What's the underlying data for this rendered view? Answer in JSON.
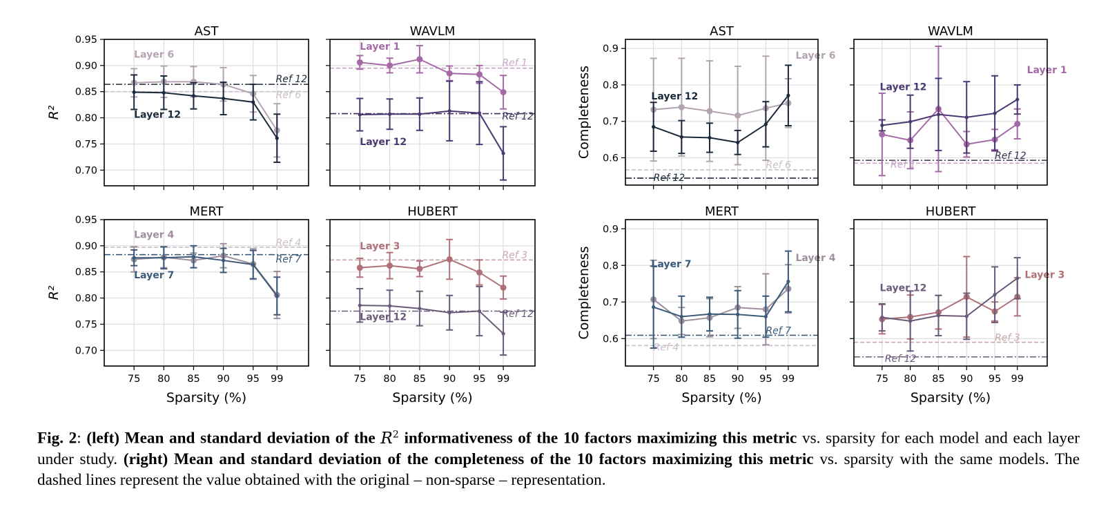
{
  "figure": {
    "x_ticks": [
      75,
      80,
      85,
      90,
      95,
      99
    ],
    "xlabel": "Sparsity (%)"
  },
  "chart_data": [
    {
      "type": "line",
      "panel": "left-top-left",
      "title": "AST",
      "ylabel": "R²",
      "xlabel": "",
      "ylim": [
        0.67,
        0.95
      ],
      "yticks": [
        "0.95",
        "0.90",
        "0.85",
        "0.80",
        "0.75",
        "0.70"
      ],
      "x": [
        75,
        80,
        85,
        90,
        95,
        99
      ],
      "grid": true,
      "series": [
        {
          "name": "Layer 6",
          "label": "Layer 6",
          "color": "#b3a3b3",
          "marker": "circle",
          "values": [
            0.867,
            0.869,
            0.869,
            0.864,
            0.846,
            0.776
          ],
          "err": [
            0.027,
            0.03,
            0.029,
            0.032,
            0.035,
            0.051
          ]
        },
        {
          "name": "Layer 12",
          "label": "Layer 12",
          "color": "#1b2a3a",
          "marker": "dot",
          "values": [
            0.849,
            0.848,
            0.842,
            0.837,
            0.83,
            0.761
          ],
          "err": [
            0.033,
            0.032,
            0.025,
            0.031,
            0.034,
            0.046
          ]
        }
      ],
      "refs": [
        {
          "label": "Ref 12",
          "value": 0.864,
          "color": "#1b2a3a",
          "style": "dashdot"
        },
        {
          "label": "Ref 6",
          "value": 0.85,
          "color": "#c9bec9",
          "style": "dashed"
        }
      ]
    },
    {
      "type": "line",
      "panel": "left-top-right",
      "title": "WAVLM",
      "ylabel": "",
      "ylim": [
        0.67,
        0.95
      ],
      "x": [
        75,
        80,
        85,
        90,
        95,
        99
      ],
      "grid": true,
      "series": [
        {
          "name": "Layer 1",
          "label": "Layer 1",
          "color": "#a56aa6",
          "marker": "circle",
          "values": [
            0.906,
            0.9,
            0.912,
            0.885,
            0.883,
            0.849
          ],
          "err": [
            0.013,
            0.014,
            0.026,
            0.014,
            0.017,
            0.032
          ]
        },
        {
          "name": "Layer 12",
          "label": "Layer 12",
          "color": "#4a3870",
          "marker": "dot",
          "values": [
            0.806,
            0.807,
            0.807,
            0.813,
            0.809,
            0.732
          ],
          "err": [
            0.031,
            0.029,
            0.031,
            0.057,
            0.06,
            0.051
          ]
        }
      ],
      "refs": [
        {
          "label": "Ref 1",
          "value": 0.895,
          "color": "#c9a8c9",
          "style": "dashed"
        },
        {
          "label": "Ref 12",
          "value": 0.808,
          "color": "#3a2f55",
          "style": "dashdot"
        }
      ]
    },
    {
      "type": "line",
      "panel": "left-bottom-left",
      "title": "MERT",
      "ylabel": "R²",
      "ylim": [
        0.67,
        0.95
      ],
      "yticks": [
        "0.95",
        "0.90",
        "0.85",
        "0.80",
        "0.75",
        "0.70"
      ],
      "x": [
        75,
        80,
        85,
        90,
        95,
        99
      ],
      "grid": true,
      "series": [
        {
          "name": "Layer 4",
          "label": "Layer 4",
          "color": "#9e8e9e",
          "marker": "circle",
          "values": [
            0.874,
            0.878,
            0.872,
            0.881,
            0.865,
            0.806
          ],
          "err": [
            0.024,
            0.02,
            0.014,
            0.023,
            0.029,
            0.045
          ]
        },
        {
          "name": "Layer 7",
          "label": "Layer 7",
          "color": "#3b5a7a",
          "marker": "dot",
          "values": [
            0.877,
            0.877,
            0.879,
            0.872,
            0.864,
            0.804
          ],
          "err": [
            0.015,
            0.021,
            0.021,
            0.023,
            0.027,
            0.036
          ]
        }
      ],
      "refs": [
        {
          "label": "Ref 4",
          "value": 0.897,
          "color": "#c9bec9",
          "style": "dashed"
        },
        {
          "label": "Ref 7",
          "value": 0.883,
          "color": "#3b5a7a",
          "style": "dashdot"
        }
      ]
    },
    {
      "type": "line",
      "panel": "left-bottom-right",
      "title": "HUBERT",
      "ylabel": "",
      "ylim": [
        0.67,
        0.95
      ],
      "x": [
        75,
        80,
        85,
        90,
        95,
        99
      ],
      "grid": true,
      "series": [
        {
          "name": "Layer 3",
          "label": "Layer 3",
          "color": "#b07078",
          "marker": "circle",
          "values": [
            0.858,
            0.862,
            0.856,
            0.874,
            0.849,
            0.82
          ],
          "err": [
            0.018,
            0.025,
            0.015,
            0.038,
            0.024,
            0.022
          ]
        },
        {
          "name": "Layer 12",
          "label": "Layer 12",
          "color": "#6a5a7a",
          "marker": "dot",
          "values": [
            0.786,
            0.785,
            0.78,
            0.772,
            0.775,
            0.732
          ],
          "err": [
            0.032,
            0.03,
            0.033,
            0.033,
            0.047,
            0.041
          ]
        }
      ],
      "refs": [
        {
          "label": "Ref 3",
          "value": 0.873,
          "color": "#c9a8ac",
          "style": "dashed"
        },
        {
          "label": "Ref 12",
          "value": 0.775,
          "color": "#6a5a7a",
          "style": "dashdot"
        }
      ]
    },
    {
      "type": "line",
      "panel": "right-top-left",
      "title": "AST",
      "ylabel": "Completeness",
      "ylim": [
        0.525,
        0.925
      ],
      "yticks": [
        "0.9",
        "0.8",
        "0.7",
        "0.6"
      ],
      "x": [
        75,
        80,
        85,
        90,
        95,
        99
      ],
      "grid": true,
      "series": [
        {
          "name": "Layer 6",
          "label": "Layer 6",
          "color": "#b3a3b3",
          "marker": "circle",
          "values": [
            0.732,
            0.739,
            0.728,
            0.716,
            0.736,
            0.75
          ],
          "err": [
            0.141,
            0.134,
            0.138,
            0.135,
            0.143,
            0.067
          ]
        },
        {
          "name": "Layer 12",
          "label": "Layer 12",
          "color": "#1b2a3a",
          "marker": "dot",
          "values": [
            0.685,
            0.657,
            0.655,
            0.642,
            0.692,
            0.771
          ],
          "err": [
            0.067,
            0.045,
            0.04,
            0.033,
            0.062,
            0.083
          ]
        }
      ],
      "refs": [
        {
          "label": "Ref 6",
          "value": 0.567,
          "color": "#c9bec9",
          "style": "dashed"
        },
        {
          "label": "Ref 12",
          "value": 0.544,
          "color": "#1b2a3a",
          "style": "dashdot"
        }
      ]
    },
    {
      "type": "line",
      "panel": "right-top-right",
      "title": "WAVLM",
      "ylabel": "",
      "ylim": [
        0.525,
        0.925
      ],
      "x": [
        75,
        80,
        85,
        90,
        95,
        99
      ],
      "grid": true,
      "series": [
        {
          "name": "Layer 1",
          "label": "Layer 1",
          "color": "#a56aa6",
          "marker": "circle",
          "values": [
            0.664,
            0.648,
            0.734,
            0.637,
            0.65,
            0.693
          ],
          "err": [
            0.113,
            0.078,
            0.172,
            0.035,
            0.028,
            0.041
          ]
        },
        {
          "name": "Layer 12",
          "label": "Layer 12",
          "color": "#4a3870",
          "marker": "dot",
          "values": [
            0.689,
            0.699,
            0.719,
            0.711,
            0.722,
            0.76
          ],
          "err": [
            0.015,
            0.073,
            0.099,
            0.098,
            0.103,
            0.04
          ]
        }
      ],
      "refs": [
        {
          "label": "Ref 12",
          "value": 0.593,
          "color": "#3a2f55",
          "style": "dashdot"
        },
        {
          "label": "Ref 1",
          "value": 0.585,
          "color": "#c9a8c9",
          "style": "dashed"
        }
      ]
    },
    {
      "type": "line",
      "panel": "right-bottom-left",
      "title": "MERT",
      "ylabel": "Completeness",
      "ylim": [
        0.525,
        0.925
      ],
      "yticks": [
        "0.9",
        "0.8",
        "0.7",
        "0.6"
      ],
      "x": [
        75,
        80,
        85,
        90,
        95,
        99
      ],
      "grid": true,
      "series": [
        {
          "name": "Layer 4",
          "label": "Layer 4",
          "color": "#9e8e9e",
          "marker": "circle",
          "values": [
            0.707,
            0.648,
            0.657,
            0.685,
            0.68,
            0.736
          ],
          "err": [
            0.107,
            0.037,
            0.052,
            0.057,
            0.097,
            0.066
          ]
        },
        {
          "name": "Layer 7",
          "label": "Layer 7",
          "color": "#3b5a7a",
          "marker": "dot",
          "values": [
            0.686,
            0.66,
            0.667,
            0.666,
            0.66,
            0.756
          ],
          "err": [
            0.112,
            0.056,
            0.046,
            0.065,
            0.056,
            0.083
          ]
        }
      ],
      "refs": [
        {
          "label": "Ref 7",
          "value": 0.609,
          "color": "#3b5a7a",
          "style": "dashdot"
        },
        {
          "label": "Ref 4",
          "value": 0.581,
          "color": "#c9bec9",
          "style": "dashed"
        }
      ]
    },
    {
      "type": "line",
      "panel": "right-bottom-right",
      "title": "HUBERT",
      "ylabel": "",
      "ylim": [
        0.525,
        0.925
      ],
      "x": [
        75,
        80,
        85,
        90,
        95,
        99
      ],
      "grid": true,
      "series": [
        {
          "name": "Layer 3",
          "label": "Layer 3",
          "color": "#b07078",
          "marker": "circle",
          "values": [
            0.653,
            0.659,
            0.672,
            0.714,
            0.674,
            0.714
          ],
          "err": [
            0.04,
            0.06,
            0.046,
            0.11,
            0.026,
            0.052
          ]
        },
        {
          "name": "Layer 12",
          "label": "Layer 12",
          "color": "#6a5a7a",
          "marker": "dot",
          "values": [
            0.658,
            0.648,
            0.663,
            0.661,
            0.72,
            0.765
          ],
          "err": [
            0.037,
            0.082,
            0.055,
            0.063,
            0.076,
            0.056
          ]
        }
      ],
      "refs": [
        {
          "label": "Ref 3",
          "value": 0.59,
          "color": "#c9a8ac",
          "style": "dashed"
        },
        {
          "label": "Ref 12",
          "value": 0.55,
          "color": "#6a5a7a",
          "style": "dashdot"
        }
      ]
    }
  ],
  "caption": {
    "fig_label": "Fig. 2",
    "colon": ": ",
    "left_bold": "(left) Mean and standard deviation of the ",
    "r2_base": "R",
    "r2_sup": "2",
    "left_bold2": " informativeness of the 10 factors maximizing this metric",
    "vs1": " vs.  sparsity for each model and each layer under study. ",
    "right_bold": "(right) Mean and standard deviation of the completeness of the 10 factors maximizing this metric",
    "vs2": " vs. sparsity with the same models. The dashed lines represent the value obtained with the original – non-sparse – representation."
  }
}
